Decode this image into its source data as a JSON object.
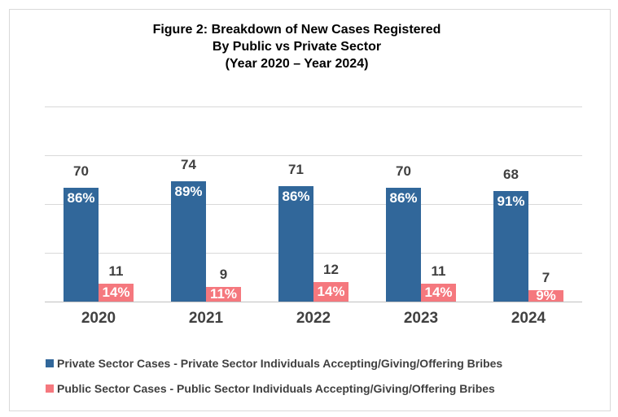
{
  "title": {
    "line1": "Figure 2: Breakdown of New Cases Registered",
    "line2": "By Public vs Private Sector",
    "line3": "(Year 2020 – Year 2024)"
  },
  "chart_data": {
    "type": "bar",
    "categories": [
      "2020",
      "2021",
      "2022",
      "2023",
      "2024"
    ],
    "series": [
      {
        "name": "Private Sector Cases - Private Sector Individuals Accepting/Giving/Offering Bribes",
        "color": "#31679a",
        "values": [
          70,
          74,
          71,
          70,
          68
        ],
        "percent_labels": [
          "86%",
          "89%",
          "86%",
          "86%",
          "91%"
        ]
      },
      {
        "name": "Public Sector Cases - Public Sector Individuals Accepting/Giving/Offering Bribes",
        "color": "#f5787e",
        "values": [
          11,
          9,
          12,
          11,
          7
        ],
        "percent_labels": [
          "14%",
          "11%",
          "14%",
          "14%",
          "9%"
        ]
      }
    ],
    "ylim": [
      0,
      120
    ],
    "gridline_values": [
      30,
      60,
      90,
      120
    ],
    "grid": true,
    "y_axis_labels_visible": false,
    "legend_position": "bottom-left",
    "value_labels_position": "above bars",
    "percent_labels_position": "inside bars"
  },
  "colors": {
    "private_bar": "#31679a",
    "public_bar": "#f5787e",
    "label_text": "#404040",
    "title_text": "#000000",
    "gridline": "#d9d9d9",
    "axis_line": "#c0c0c0",
    "frame_border": "#d9d9d9",
    "background": "#ffffff"
  }
}
